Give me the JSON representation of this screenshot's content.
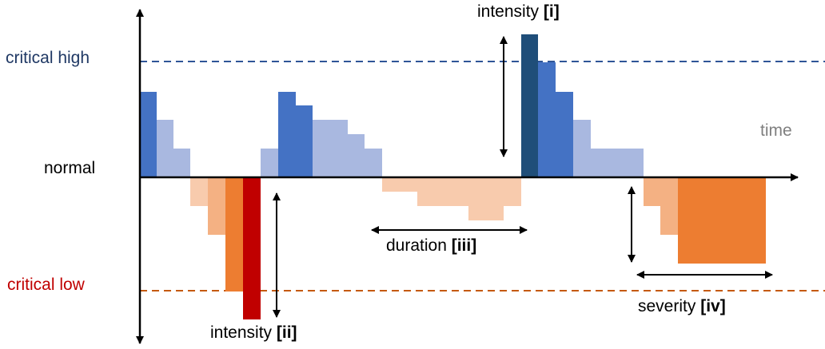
{
  "labels": {
    "critical_high": "critical high",
    "normal": "normal",
    "critical_low": "critical low",
    "time": "time",
    "intensity_i": "intensity",
    "intensity_i_tag": "[i]",
    "intensity_ii": "intensity",
    "intensity_ii_tag": "[ii]",
    "duration": "duration",
    "duration_tag": "[iii]",
    "severity": "severity",
    "severity_tag": "[iv]"
  },
  "colors": {
    "critical_high_line": "#2F5597",
    "critical_low_line": "#C55A11",
    "critical_high_text": "#1F3864",
    "critical_low_text": "#C00000",
    "time_text": "#7F7F7F",
    "blue_strong": "#4472C4",
    "blue_light": "#A9B8E0",
    "blue_dark": "#1F4E79",
    "orange_light": "#F8CBAD",
    "orange_mid": "#F4B183",
    "orange_strong": "#ED7D31",
    "red": "#C00000"
  }
}
